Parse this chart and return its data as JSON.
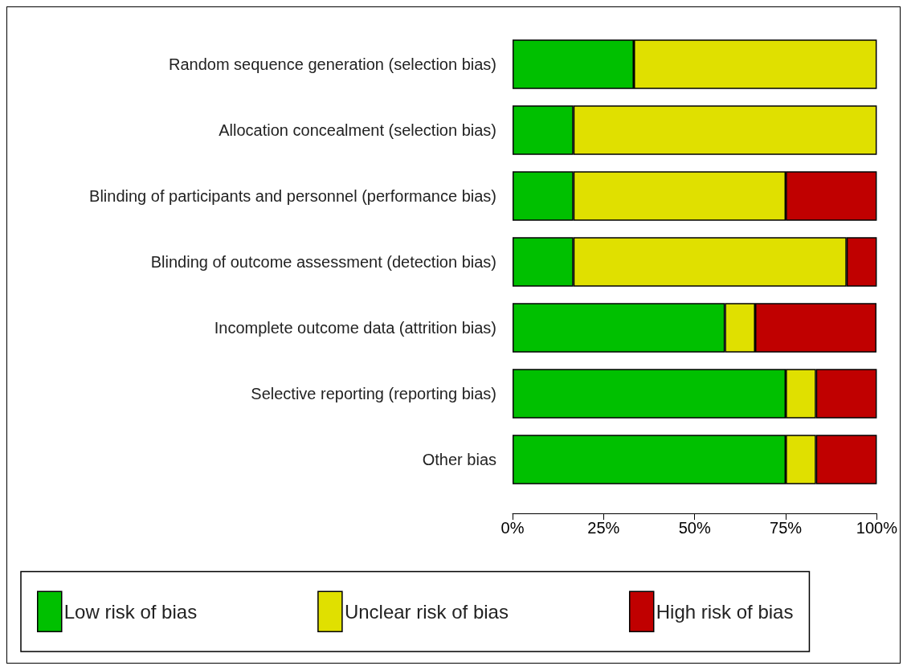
{
  "chart_data": {
    "type": "bar",
    "orientation": "horizontal",
    "stacked": true,
    "categories": [
      "Random sequence generation (selection bias)",
      "Allocation concealment (selection bias)",
      "Blinding of participants and personnel (performance bias)",
      "Blinding of outcome assessment (detection bias)",
      "Incomplete outcome data (attrition bias)",
      "Selective reporting (reporting bias)",
      "Other bias"
    ],
    "series": [
      {
        "name": "Low risk of bias",
        "color": "#00c000",
        "values": [
          33.3,
          16.7,
          16.7,
          16.7,
          58.3,
          75,
          75
        ]
      },
      {
        "name": "Unclear risk of bias",
        "color": "#e0e000",
        "values": [
          66.7,
          83.3,
          58.3,
          75,
          8.3,
          8.3,
          8.3
        ]
      },
      {
        "name": "High risk of bias",
        "color": "#c00000",
        "values": [
          0,
          0,
          25,
          8.3,
          33.3,
          16.7,
          16.7
        ]
      }
    ],
    "xlim": [
      0,
      100
    ],
    "xticks": [
      {
        "value": 0,
        "label": "0%"
      },
      {
        "value": 25,
        "label": "25%"
      },
      {
        "value": 50,
        "label": "50%"
      },
      {
        "value": 75,
        "label": "75%"
      },
      {
        "value": 100,
        "label": "100%"
      }
    ],
    "grid": false,
    "legend": "bottom"
  }
}
